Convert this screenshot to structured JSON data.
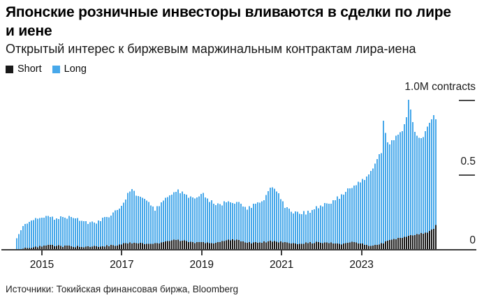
{
  "header": {
    "title_lines": [
      "Японские розничные инвесторы вливаются в сделки по лире",
      "и иене"
    ],
    "subtitle": "Открытый интерес к биржевым маржинальным контрактам лира-иена"
  },
  "legend": {
    "items": [
      {
        "label": "Short",
        "color": "#191919"
      },
      {
        "label": "Long",
        "color": "#47a8ea"
      }
    ]
  },
  "footer": {
    "source": "Источники: Токийская финансовая биржа, Bloomberg"
  },
  "chart_data": {
    "type": "bar",
    "stacked": true,
    "title": "Японские розничные инвесторы вливаются в сделки по лире и иене",
    "subtitle": "Открытый интерес к биржевым маржинальным контрактам лира-иена",
    "source": "Источники: Токийская финансовая биржа, Bloomberg",
    "unit": "M contracts",
    "legend_position": "top-left",
    "legend_entries": [
      "Short",
      "Long"
    ],
    "ylim": [
      0,
      1.05
    ],
    "y_ticks": [
      {
        "value": 1.0,
        "label": "1.0M contracts",
        "tick": true
      },
      {
        "value": 0.5,
        "label": "0.5",
        "tick": true
      },
      {
        "value": 0,
        "label": "0",
        "tick": false
      }
    ],
    "x_tick_years": [
      2015,
      2017,
      2019,
      2021,
      2023
    ],
    "x_tick_labels": [
      "2015",
      "2017",
      "2019",
      "2021",
      "2023"
    ],
    "x_range_years": [
      2014.35,
      2024.82
    ],
    "bar_count": 201,
    "series": [
      {
        "name": "Short",
        "color": "#191919",
        "role": "bottom-segment",
        "anchors_year_value": [
          [
            2014.35,
            0.004
          ],
          [
            2014.6,
            0.012
          ],
          [
            2014.9,
            0.022
          ],
          [
            2015.1,
            0.03
          ],
          [
            2015.4,
            0.026
          ],
          [
            2015.7,
            0.022
          ],
          [
            2016.0,
            0.02
          ],
          [
            2016.4,
            0.022
          ],
          [
            2016.8,
            0.03
          ],
          [
            2017.1,
            0.042
          ],
          [
            2017.3,
            0.05
          ],
          [
            2017.6,
            0.04
          ],
          [
            2017.9,
            0.045
          ],
          [
            2018.1,
            0.055
          ],
          [
            2018.3,
            0.068
          ],
          [
            2018.5,
            0.06
          ],
          [
            2018.8,
            0.05
          ],
          [
            2019.0,
            0.048
          ],
          [
            2019.3,
            0.045
          ],
          [
            2019.55,
            0.06
          ],
          [
            2019.75,
            0.07
          ],
          [
            2019.95,
            0.058
          ],
          [
            2020.2,
            0.045
          ],
          [
            2020.5,
            0.05
          ],
          [
            2020.75,
            0.058
          ],
          [
            2021.0,
            0.05
          ],
          [
            2021.3,
            0.04
          ],
          [
            2021.6,
            0.045
          ],
          [
            2021.9,
            0.05
          ],
          [
            2022.2,
            0.045
          ],
          [
            2022.5,
            0.04
          ],
          [
            2022.75,
            0.05
          ],
          [
            2023.0,
            0.04
          ],
          [
            2023.15,
            0.025
          ],
          [
            2023.35,
            0.032
          ],
          [
            2023.5,
            0.045
          ],
          [
            2023.7,
            0.065
          ],
          [
            2023.9,
            0.078
          ],
          [
            2024.1,
            0.09
          ],
          [
            2024.3,
            0.1
          ],
          [
            2024.5,
            0.108
          ],
          [
            2024.65,
            0.12
          ],
          [
            2024.75,
            0.14
          ],
          [
            2024.8,
            0.155
          ],
          [
            2024.82,
            0.17
          ]
        ]
      },
      {
        "name": "Long",
        "color": "#47a8ea",
        "role": "top-segment",
        "anchors_meaning": "stack top = Short + Long, in millions of contracts",
        "anchors_year_value": [
          [
            2014.35,
            0.08
          ],
          [
            2014.45,
            0.13
          ],
          [
            2014.6,
            0.18
          ],
          [
            2014.75,
            0.2
          ],
          [
            2014.9,
            0.21
          ],
          [
            2015.05,
            0.22
          ],
          [
            2015.3,
            0.21
          ],
          [
            2015.55,
            0.215
          ],
          [
            2015.8,
            0.21
          ],
          [
            2016.0,
            0.195
          ],
          [
            2016.2,
            0.18
          ],
          [
            2016.4,
            0.19
          ],
          [
            2016.6,
            0.22
          ],
          [
            2016.8,
            0.25
          ],
          [
            2017.0,
            0.3
          ],
          [
            2017.15,
            0.4
          ],
          [
            2017.25,
            0.41
          ],
          [
            2017.35,
            0.36
          ],
          [
            2017.5,
            0.36
          ],
          [
            2017.65,
            0.31
          ],
          [
            2017.8,
            0.27
          ],
          [
            2017.95,
            0.31
          ],
          [
            2018.1,
            0.35
          ],
          [
            2018.3,
            0.4
          ],
          [
            2018.5,
            0.385
          ],
          [
            2018.7,
            0.35
          ],
          [
            2018.85,
            0.35
          ],
          [
            2019.0,
            0.375
          ],
          [
            2019.15,
            0.33
          ],
          [
            2019.3,
            0.305
          ],
          [
            2019.5,
            0.31
          ],
          [
            2019.7,
            0.315
          ],
          [
            2019.9,
            0.325
          ],
          [
            2020.1,
            0.28
          ],
          [
            2020.3,
            0.3
          ],
          [
            2020.5,
            0.33
          ],
          [
            2020.65,
            0.4
          ],
          [
            2020.75,
            0.43
          ],
          [
            2020.9,
            0.37
          ],
          [
            2021.05,
            0.29
          ],
          [
            2021.2,
            0.26
          ],
          [
            2021.4,
            0.245
          ],
          [
            2021.6,
            0.25
          ],
          [
            2021.8,
            0.28
          ],
          [
            2022.0,
            0.3
          ],
          [
            2022.2,
            0.32
          ],
          [
            2022.4,
            0.35
          ],
          [
            2022.6,
            0.4
          ],
          [
            2022.8,
            0.44
          ],
          [
            2022.95,
            0.46
          ],
          [
            2023.05,
            0.48
          ],
          [
            2023.2,
            0.53
          ],
          [
            2023.35,
            0.6
          ],
          [
            2023.47,
            0.66
          ],
          [
            2023.5,
            0.87
          ],
          [
            2023.55,
            0.87
          ],
          [
            2023.58,
            0.7
          ],
          [
            2023.7,
            0.72
          ],
          [
            2023.85,
            0.76
          ],
          [
            2024.0,
            0.81
          ],
          [
            2024.08,
            0.88
          ],
          [
            2024.12,
            0.95
          ],
          [
            2024.13,
            1.0
          ],
          [
            2024.17,
            1.0
          ],
          [
            2024.2,
            0.93
          ],
          [
            2024.3,
            0.78
          ],
          [
            2024.42,
            0.74
          ],
          [
            2024.55,
            0.78
          ],
          [
            2024.65,
            0.84
          ],
          [
            2024.72,
            0.87
          ],
          [
            2024.78,
            0.9
          ],
          [
            2024.82,
            0.88
          ]
        ]
      }
    ]
  }
}
